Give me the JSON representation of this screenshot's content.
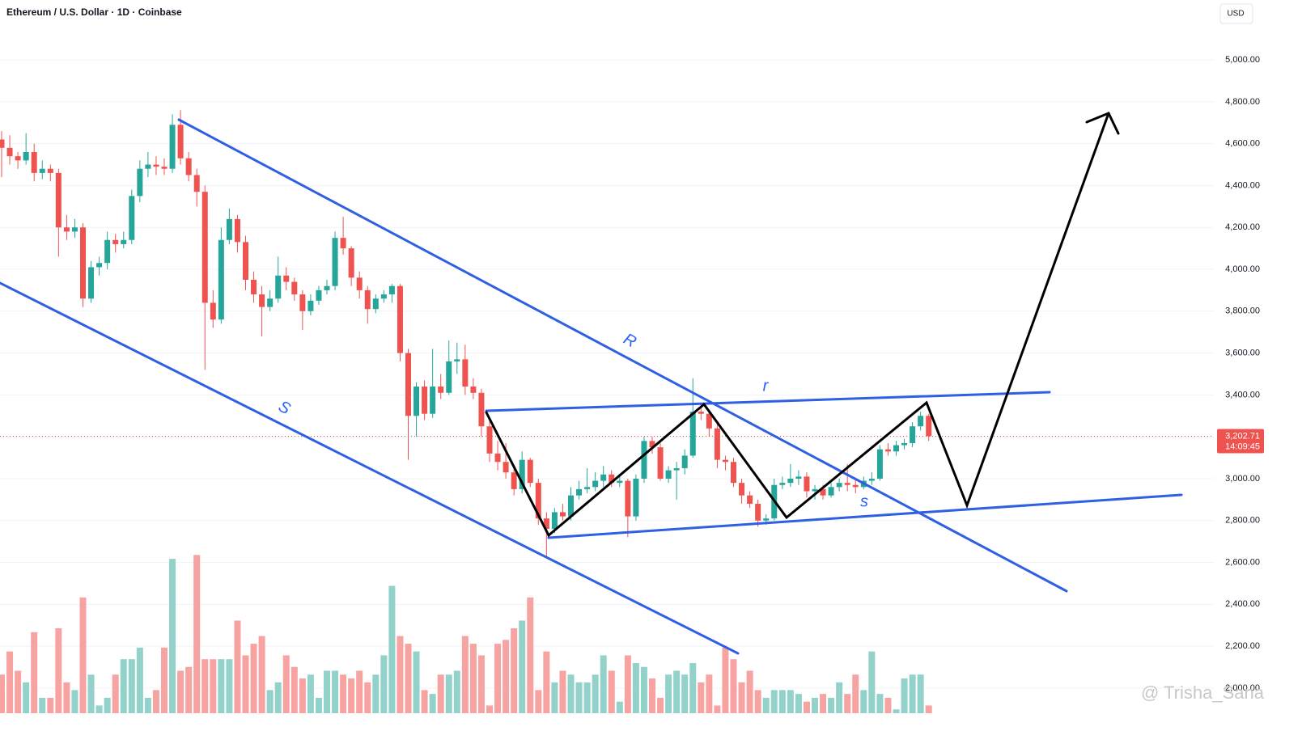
{
  "chart_data": {
    "type": "candlestick",
    "title": "Ethereum / U.S. Dollar · 1D · Coinbase",
    "currency": "USD",
    "up_color": "#26a69a",
    "down_color": "#ef5350",
    "up_volume_color": "#93d2cb",
    "down_volume_color": "#f6a3a1",
    "ylim": [
      1795,
      5286
    ],
    "yticks": [
      {
        "value": 2000,
        "label": "2,000.00"
      },
      {
        "value": 2200,
        "label": "2,200.00"
      },
      {
        "value": 2400,
        "label": "2,400.00"
      },
      {
        "value": 2600,
        "label": "2,600.00"
      },
      {
        "value": 2800,
        "label": "2,800.00"
      },
      {
        "value": 3000,
        "label": "3,000.00"
      },
      {
        "value": 3200,
        "label": "3,200.00"
      },
      {
        "value": 3400,
        "label": "3,400.00"
      },
      {
        "value": 3600,
        "label": "3,600.00"
      },
      {
        "value": 3800,
        "label": "3,800.00"
      },
      {
        "value": 4000,
        "label": "4,000.00"
      },
      {
        "value": 4200,
        "label": "4,200.00"
      },
      {
        "value": 4400,
        "label": "4,400.00"
      },
      {
        "value": 4600,
        "label": "4,600.00"
      },
      {
        "value": 4800,
        "label": "4,800.00"
      },
      {
        "value": 5000,
        "label": "5,000.00"
      }
    ],
    "grid": true,
    "last_price_label": "3,202.71",
    "countdown": "14:09:45",
    "pattern_labels": [
      "R",
      "S",
      "r",
      "s"
    ],
    "watermark": "@ Trisha_Sana",
    "vlim": [
      0,
      220
    ],
    "candles": [
      [
        4620,
        4660,
        4440,
        4580
      ],
      [
        4580,
        4640,
        4500,
        4540
      ],
      [
        4540,
        4560,
        4480,
        4520
      ],
      [
        4520,
        4650,
        4500,
        4560
      ],
      [
        4560,
        4600,
        4420,
        4460
      ],
      [
        4460,
        4520,
        4430,
        4480
      ],
      [
        4480,
        4500,
        4420,
        4460
      ],
      [
        4460,
        4480,
        4060,
        4200
      ],
      [
        4200,
        4260,
        4140,
        4180
      ],
      [
        4180,
        4240,
        4150,
        4200
      ],
      [
        4200,
        4220,
        3820,
        3860
      ],
      [
        3860,
        4040,
        3840,
        4010
      ],
      [
        4010,
        4060,
        3970,
        4030
      ],
      [
        4030,
        4180,
        4000,
        4140
      ],
      [
        4140,
        4170,
        4080,
        4120
      ],
      [
        4120,
        4180,
        4100,
        4140
      ],
      [
        4140,
        4380,
        4120,
        4350
      ],
      [
        4350,
        4520,
        4320,
        4480
      ],
      [
        4480,
        4560,
        4440,
        4500
      ],
      [
        4500,
        4540,
        4450,
        4490
      ],
      [
        4490,
        4530,
        4450,
        4480
      ],
      [
        4480,
        4740,
        4460,
        4690
      ],
      [
        4690,
        4760,
        4500,
        4530
      ],
      [
        4530,
        4560,
        4420,
        4450
      ],
      [
        4450,
        4480,
        4300,
        4370
      ],
      [
        4370,
        4400,
        3520,
        3840
      ],
      [
        3840,
        3900,
        3720,
        3760
      ],
      [
        3760,
        4200,
        3740,
        4140
      ],
      [
        4140,
        4290,
        4120,
        4240
      ],
      [
        4240,
        4260,
        4080,
        4130
      ],
      [
        4130,
        4160,
        3900,
        3950
      ],
      [
        3950,
        3990,
        3840,
        3880
      ],
      [
        3880,
        3920,
        3680,
        3820
      ],
      [
        3820,
        3900,
        3800,
        3860
      ],
      [
        3860,
        4060,
        3840,
        3970
      ],
      [
        3970,
        4010,
        3900,
        3940
      ],
      [
        3940,
        3960,
        3850,
        3880
      ],
      [
        3880,
        3900,
        3710,
        3800
      ],
      [
        3800,
        3880,
        3780,
        3850
      ],
      [
        3850,
        3920,
        3830,
        3900
      ],
      [
        3900,
        3950,
        3880,
        3920
      ],
      [
        3920,
        4180,
        3900,
        4150
      ],
      [
        4150,
        4250,
        4070,
        4100
      ],
      [
        4100,
        4110,
        3920,
        3960
      ],
      [
        3960,
        3990,
        3860,
        3900
      ],
      [
        3900,
        3920,
        3740,
        3810
      ],
      [
        3810,
        3880,
        3790,
        3860
      ],
      [
        3860,
        3900,
        3840,
        3880
      ],
      [
        3880,
        3930,
        3840,
        3920
      ],
      [
        3920,
        3930,
        3560,
        3600
      ],
      [
        3600,
        3620,
        3090,
        3300
      ],
      [
        3300,
        3460,
        3200,
        3440
      ],
      [
        3440,
        3470,
        3280,
        3310
      ],
      [
        3310,
        3620,
        3290,
        3440
      ],
      [
        3440,
        3500,
        3380,
        3410
      ],
      [
        3410,
        3660,
        3400,
        3560
      ],
      [
        3560,
        3650,
        3500,
        3570
      ],
      [
        3570,
        3640,
        3400,
        3440
      ],
      [
        3440,
        3480,
        3380,
        3410
      ],
      [
        3410,
        3430,
        3200,
        3250
      ],
      [
        3250,
        3290,
        3080,
        3120
      ],
      [
        3120,
        3180,
        3040,
        3080
      ],
      [
        3080,
        3170,
        3000,
        3030
      ],
      [
        3030,
        3060,
        2920,
        2950
      ],
      [
        2950,
        3130,
        2930,
        3090
      ],
      [
        3090,
        3100,
        2960,
        2980
      ],
      [
        2980,
        3000,
        2780,
        2810
      ],
      [
        2810,
        2840,
        2620,
        2760
      ],
      [
        2760,
        2860,
        2740,
        2840
      ],
      [
        2840,
        2880,
        2800,
        2820
      ],
      [
        2820,
        2960,
        2800,
        2920
      ],
      [
        2920,
        2990,
        2900,
        2950
      ],
      [
        2950,
        3050,
        2930,
        2960
      ],
      [
        2960,
        3030,
        2940,
        2990
      ],
      [
        2990,
        3060,
        2960,
        3020
      ],
      [
        3020,
        3040,
        2960,
        2980
      ],
      [
        2980,
        3010,
        2960,
        2990
      ],
      [
        2990,
        3000,
        2720,
        2820
      ],
      [
        2820,
        3020,
        2800,
        3000
      ],
      [
        3000,
        3200,
        2980,
        3180
      ],
      [
        3180,
        3200,
        3120,
        3150
      ],
      [
        3150,
        3170,
        2990,
        3000
      ],
      [
        3000,
        3060,
        2980,
        3040
      ],
      [
        3040,
        3080,
        2900,
        3050
      ],
      [
        3050,
        3140,
        3020,
        3110
      ],
      [
        3110,
        3480,
        3100,
        3320
      ],
      [
        3320,
        3360,
        3280,
        3310
      ],
      [
        3310,
        3330,
        3200,
        3240
      ],
      [
        3240,
        3260,
        3050,
        3090
      ],
      [
        3090,
        3110,
        3040,
        3080
      ],
      [
        3080,
        3100,
        2960,
        2980
      ],
      [
        2980,
        3000,
        2880,
        2920
      ],
      [
        2920,
        2940,
        2860,
        2880
      ],
      [
        2880,
        2900,
        2770,
        2800
      ],
      [
        2800,
        2830,
        2780,
        2810
      ],
      [
        2810,
        3000,
        2800,
        2970
      ],
      [
        2970,
        3010,
        2950,
        2980
      ],
      [
        2980,
        3070,
        2960,
        3000
      ],
      [
        3000,
        3040,
        2970,
        3010
      ],
      [
        3010,
        3030,
        2910,
        2940
      ],
      [
        2940,
        2970,
        2900,
        2950
      ],
      [
        2950,
        2970,
        2900,
        2920
      ],
      [
        2920,
        2980,
        2910,
        2960
      ],
      [
        2960,
        3000,
        2940,
        2980
      ],
      [
        2980,
        3070,
        2940,
        2970
      ],
      [
        2970,
        3000,
        2930,
        2960
      ],
      [
        2960,
        3010,
        2950,
        2990
      ],
      [
        2990,
        3030,
        2970,
        3000
      ],
      [
        3000,
        3160,
        2990,
        3140
      ],
      [
        3140,
        3170,
        3110,
        3130
      ],
      [
        3130,
        3180,
        3110,
        3160
      ],
      [
        3160,
        3190,
        3140,
        3170
      ],
      [
        3170,
        3270,
        3150,
        3250
      ],
      [
        3250,
        3320,
        3230,
        3300
      ],
      [
        3300,
        3310,
        3180,
        3202.71
      ]
    ],
    "volumes": [
      50,
      80,
      55,
      40,
      105,
      20,
      20,
      110,
      40,
      30,
      150,
      50,
      10,
      20,
      50,
      70,
      70,
      85,
      20,
      30,
      85,
      200,
      55,
      60,
      205,
      70,
      70,
      70,
      70,
      120,
      75,
      90,
      100,
      30,
      40,
      75,
      60,
      45,
      50,
      20,
      55,
      55,
      50,
      45,
      55,
      40,
      50,
      75,
      165,
      100,
      90,
      80,
      30,
      25,
      50,
      50,
      55,
      100,
      90,
      75,
      10,
      90,
      95,
      110,
      120,
      150,
      30,
      80,
      40,
      55,
      50,
      40,
      40,
      50,
      75,
      55,
      15,
      75,
      65,
      60,
      45,
      20,
      50,
      55,
      50,
      65,
      40,
      50,
      10,
      85,
      70,
      40,
      55,
      30,
      20,
      30,
      30,
      30,
      25,
      15,
      20,
      25,
      20,
      40,
      25,
      50,
      30,
      80,
      25,
      20,
      5,
      45,
      50,
      50,
      10
    ]
  }
}
